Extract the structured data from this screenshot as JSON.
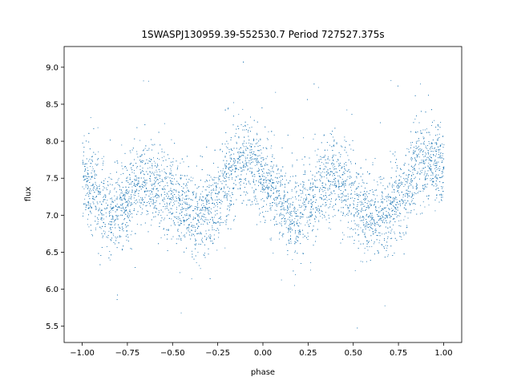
{
  "chart_data": {
    "type": "scatter",
    "title": "1SWASPJ130959.39-552530.7 Period 727527.375s",
    "xlabel": "phase",
    "ylabel": "flux",
    "xlim": [
      -1.1,
      1.1
    ],
    "ylim": [
      5.28,
      9.28
    ],
    "xticks": [
      -1.0,
      -0.75,
      -0.5,
      -0.25,
      0.0,
      0.25,
      0.5,
      0.75,
      1.0
    ],
    "xtick_labels": [
      "−1.00",
      "−0.75",
      "−0.50",
      "−0.25",
      "0.00",
      "0.25",
      "0.50",
      "0.75",
      "1.00"
    ],
    "yticks": [
      5.5,
      6.0,
      6.5,
      7.0,
      7.5,
      8.0,
      8.5,
      9.0
    ],
    "ytick_labels": [
      "5.5",
      "6.0",
      "6.5",
      "7.0",
      "7.5",
      "8.0",
      "8.5",
      "9.0"
    ],
    "grid": false,
    "marker_color": "#1f77b4",
    "series": [
      {
        "x": [
          -1.0,
          -0.95,
          -0.9,
          -0.85,
          -0.8,
          -0.75,
          -0.7,
          -0.65,
          -0.6,
          -0.55,
          -0.5,
          -0.45,
          -0.4,
          -0.35,
          -0.3,
          -0.25,
          -0.2,
          -0.15,
          -0.1,
          -0.05,
          0.0,
          0.05,
          0.1,
          0.15,
          0.2,
          0.25,
          0.3,
          0.35,
          0.4,
          0.45,
          0.5,
          0.55,
          0.6,
          0.65,
          0.7,
          0.75,
          0.8,
          0.85,
          0.9,
          0.95,
          1.0
        ],
        "y": [
          7.55,
          7.4,
          7.15,
          7.0,
          7.05,
          7.25,
          7.4,
          7.5,
          7.45,
          7.35,
          7.25,
          7.1,
          7.0,
          7.0,
          7.05,
          7.25,
          7.5,
          7.65,
          7.75,
          7.7,
          7.55,
          7.35,
          7.15,
          7.0,
          7.0,
          7.15,
          7.35,
          7.45,
          7.5,
          7.4,
          7.25,
          7.1,
          7.0,
          7.0,
          7.05,
          7.2,
          7.45,
          7.65,
          7.7,
          7.7,
          7.6
        ],
        "scatter_sd": 0.28
      }
    ]
  }
}
